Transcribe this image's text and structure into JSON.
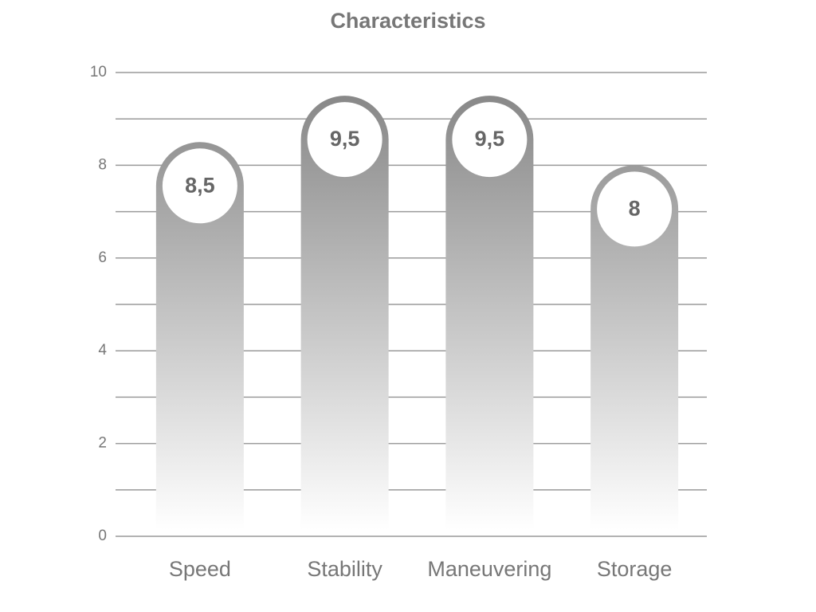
{
  "chart_data": {
    "type": "bar",
    "title": "Characteristics",
    "categories": [
      "Speed",
      "Stability",
      "Maneuvering",
      "Storage"
    ],
    "values": [
      8.5,
      9.5,
      9.5,
      8
    ],
    "value_labels": [
      "8,5",
      "9,5",
      "9,5",
      "8"
    ],
    "color": "#8a8a8a",
    "ylim": [
      0,
      10
    ],
    "yticks": [
      0,
      2,
      4,
      6,
      8,
      10
    ],
    "yminorticks": [
      1,
      3,
      5,
      7,
      9
    ],
    "grid": true
  }
}
